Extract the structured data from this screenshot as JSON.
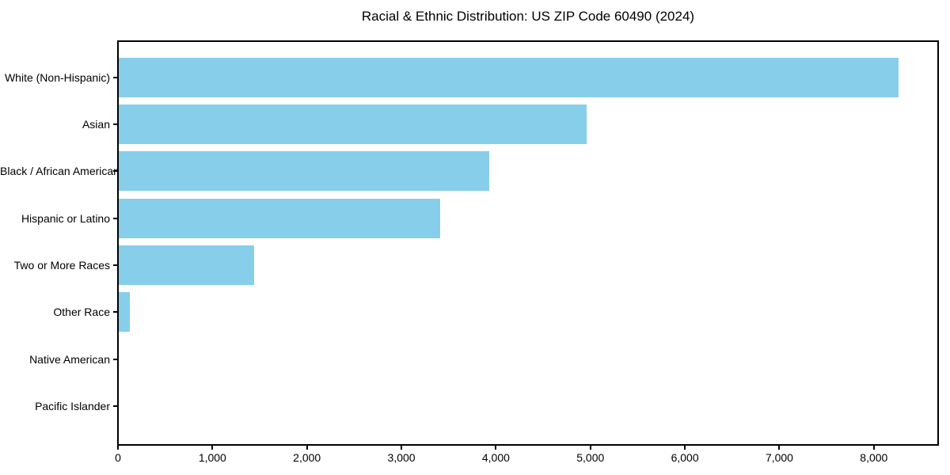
{
  "chart_data": {
    "type": "bar",
    "orientation": "horizontal",
    "title": "Racial & Ethnic Distribution: US ZIP Code 60490 (2024)",
    "categories": [
      "White (Non-Hispanic)",
      "Asian",
      "Black / African American",
      "Hispanic or Latino",
      "Two or More Races",
      "Other Race",
      "Native American",
      "Pacific Islander"
    ],
    "values": [
      8265,
      4960,
      3930,
      3410,
      1440,
      125,
      0,
      0
    ],
    "xlabel": "",
    "ylabel": "",
    "xlim": [
      0,
      8680
    ],
    "x_ticks": [
      0,
      1000,
      2000,
      3000,
      4000,
      5000,
      6000,
      7000,
      8000
    ],
    "x_tick_labels": [
      "0",
      "1,000",
      "2,000",
      "3,000",
      "4,000",
      "5,000",
      "6,000",
      "7,000",
      "8,000"
    ],
    "grid": false,
    "legend": false,
    "bar_color": "#87CEEB",
    "background_color": "#ffffff",
    "spine_color": "#000000",
    "text_color": "#000000"
  }
}
